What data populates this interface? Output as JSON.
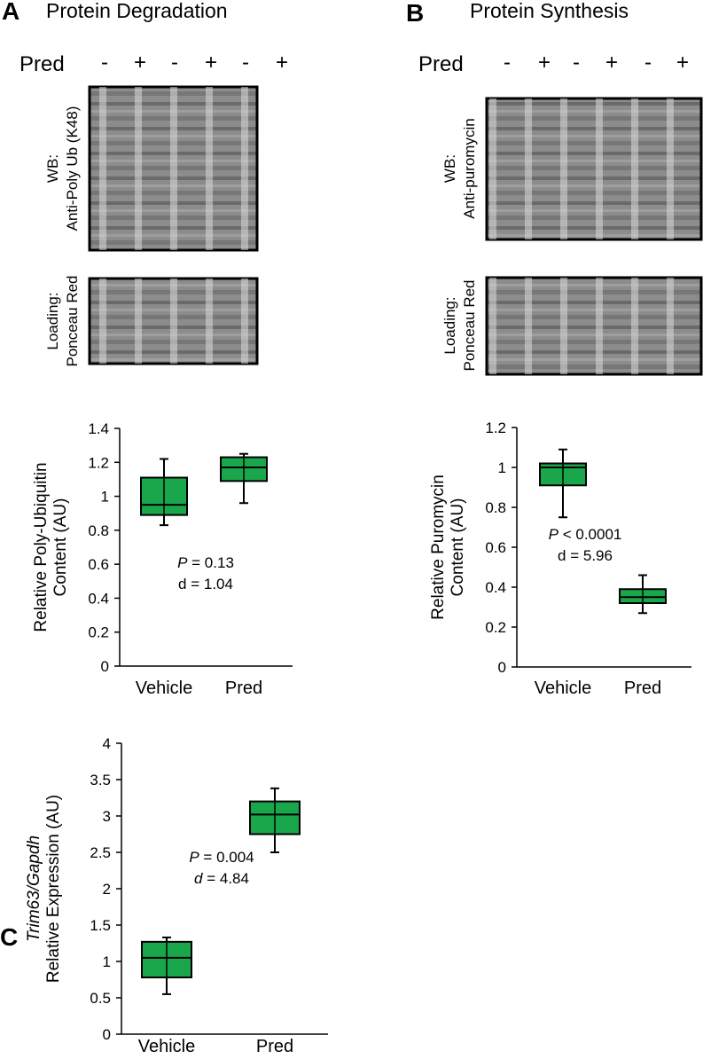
{
  "panels": [
    {
      "letter": "A",
      "title": "Protein Degradation",
      "treatment_label": "Pred",
      "lane_signs": [
        "-",
        "+",
        "-",
        "+",
        "-",
        "+"
      ],
      "blots": [
        {
          "label_lines": [
            "WB:",
            "Anti-Poly Ub (K48)"
          ]
        },
        {
          "label_lines": [
            "Loading:",
            "Ponceau Red"
          ]
        }
      ]
    },
    {
      "letter": "B",
      "title": "Protein Synthesis",
      "treatment_label": "Pred",
      "lane_signs": [
        "-",
        "+",
        "-",
        "+",
        "-",
        "+"
      ],
      "blots": [
        {
          "label_lines": [
            "WB:",
            "Anti-puromycin"
          ]
        },
        {
          "label_lines": [
            "Loading:",
            "Ponceau Red"
          ]
        }
      ]
    },
    {
      "letter": "C"
    }
  ],
  "chart_data": [
    {
      "type": "box",
      "ylabel": [
        {
          "text": "Relative Poly-Ubiquitin"
        },
        {
          "text": "Content (AU)"
        }
      ],
      "categories": [
        "Vehicle",
        "Pred"
      ],
      "whislo": [
        0.83,
        0.96
      ],
      "q1": [
        0.89,
        1.09
      ],
      "median": [
        0.95,
        1.17
      ],
      "q3": [
        1.11,
        1.23
      ],
      "whishi": [
        1.22,
        1.25
      ],
      "color": "#1aa64b",
      "ylim": [
        0,
        1.4
      ],
      "yticks": [
        0,
        0.2,
        0.4,
        0.6,
        0.8,
        1,
        1.2,
        1.4
      ],
      "annotation": [
        {
          "italic": "P",
          "text": " = 0.13"
        },
        {
          "text": "d = 1.04"
        }
      ]
    },
    {
      "type": "box",
      "ylabel": [
        {
          "text": "Relative Puromycin"
        },
        {
          "text": "Content (AU)"
        }
      ],
      "categories": [
        "Vehicle",
        "Pred"
      ],
      "whislo": [
        0.75,
        0.27
      ],
      "q1": [
        0.91,
        0.32
      ],
      "median": [
        1.0,
        0.35
      ],
      "q3": [
        1.02,
        0.39
      ],
      "whishi": [
        1.09,
        0.46
      ],
      "color": "#1aa64b",
      "ylim": [
        0,
        1.2
      ],
      "yticks": [
        0,
        0.2,
        0.4,
        0.6,
        0.8,
        1,
        1.2
      ],
      "annotation": [
        {
          "italic": "P",
          "text": " < 0.0001"
        },
        {
          "text": "d = 5.96"
        }
      ]
    },
    {
      "type": "box",
      "ylabel": [
        {
          "italic": "Trim63/Gapdh"
        },
        {
          "text": "Relative Expression (AU)"
        }
      ],
      "categories": [
        "Vehicle",
        "Pred"
      ],
      "whislo": [
        0.55,
        2.5
      ],
      "q1": [
        0.78,
        2.75
      ],
      "median": [
        1.05,
        3.02
      ],
      "q3": [
        1.27,
        3.2
      ],
      "whishi": [
        1.33,
        3.38
      ],
      "color": "#1aa64b",
      "ylim": [
        0,
        4
      ],
      "yticks": [
        0,
        0.5,
        1,
        1.5,
        2,
        2.5,
        3,
        3.5,
        4
      ],
      "annotation": [
        {
          "italic": "P",
          "text": " = 0.004"
        },
        {
          "italic": "d",
          "text": " = 4.84"
        }
      ]
    }
  ]
}
